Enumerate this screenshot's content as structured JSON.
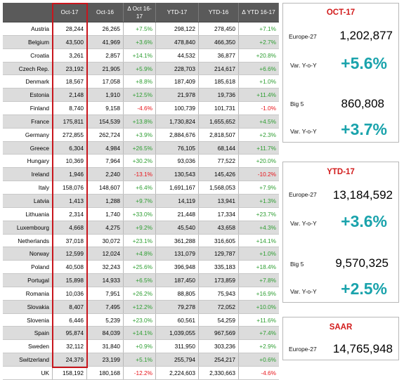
{
  "table": {
    "headers": [
      "",
      "Oct-17",
      "Oct-16",
      "Δ Oct 16-17",
      "YTD-17",
      "YTD-16",
      "Δ YTD 16-17"
    ],
    "rows": [
      [
        "Austria",
        "28,244",
        "26,265",
        "+7.5%",
        "298,122",
        "278,450",
        "+7.1%"
      ],
      [
        "Belgium",
        "43,500",
        "41,969",
        "+3.6%",
        "478,840",
        "466,350",
        "+2.7%"
      ],
      [
        "Croatia",
        "3,261",
        "2,857",
        "+14.1%",
        "44,532",
        "36,877",
        "+20.8%"
      ],
      [
        "Czech Rep.",
        "23,192",
        "21,905",
        "+5.9%",
        "228,703",
        "214,617",
        "+6.6%"
      ],
      [
        "Denmark",
        "18,567",
        "17,058",
        "+8.8%",
        "187,409",
        "185,618",
        "+1.0%"
      ],
      [
        "Estonia",
        "2,148",
        "1,910",
        "+12.5%",
        "21,978",
        "19,736",
        "+11.4%"
      ],
      [
        "Finland",
        "8,740",
        "9,158",
        "-4.6%",
        "100,739",
        "101,731",
        "-1.0%"
      ],
      [
        "France",
        "175,811",
        "154,539",
        "+13.8%",
        "1,730,824",
        "1,655,652",
        "+4.5%"
      ],
      [
        "Germany",
        "272,855",
        "262,724",
        "+3.9%",
        "2,884,676",
        "2,818,507",
        "+2.3%"
      ],
      [
        "Greece",
        "6,304",
        "4,984",
        "+26.5%",
        "76,105",
        "68,144",
        "+11.7%"
      ],
      [
        "Hungary",
        "10,369",
        "7,964",
        "+30.2%",
        "93,036",
        "77,522",
        "+20.0%"
      ],
      [
        "Ireland",
        "1,946",
        "2,240",
        "-13.1%",
        "130,543",
        "145,426",
        "-10.2%"
      ],
      [
        "Italy",
        "158,076",
        "148,607",
        "+6.4%",
        "1,691,167",
        "1,568,053",
        "+7.9%"
      ],
      [
        "Latvia",
        "1,413",
        "1,288",
        "+9.7%",
        "14,119",
        "13,941",
        "+1.3%"
      ],
      [
        "Lithuania",
        "2,314",
        "1,740",
        "+33.0%",
        "21,448",
        "17,334",
        "+23.7%"
      ],
      [
        "Luxembourg",
        "4,668",
        "4,275",
        "+9.2%",
        "45,540",
        "43,658",
        "+4.3%"
      ],
      [
        "Netherlands",
        "37,018",
        "30,072",
        "+23.1%",
        "361,288",
        "316,605",
        "+14.1%"
      ],
      [
        "Norway",
        "12,599",
        "12,024",
        "+4.8%",
        "131,079",
        "129,787",
        "+1.0%"
      ],
      [
        "Poland",
        "40,508",
        "32,243",
        "+25.6%",
        "396,948",
        "335,183",
        "+18.4%"
      ],
      [
        "Portugal",
        "15,898",
        "14,933",
        "+6.5%",
        "187,450",
        "173,859",
        "+7.8%"
      ],
      [
        "Romania",
        "10,036",
        "7,951",
        "+26.2%",
        "88,805",
        "75,943",
        "+16.9%"
      ],
      [
        "Slovakia",
        "8,407",
        "7,495",
        "+12.2%",
        "79,278",
        "72,052",
        "+10.0%"
      ],
      [
        "Slovenia",
        "6,446",
        "5,239",
        "+23.0%",
        "60,561",
        "54,259",
        "+11.6%"
      ],
      [
        "Spain",
        "95,874",
        "84,039",
        "+14.1%",
        "1,039,055",
        "967,569",
        "+7.4%"
      ],
      [
        "Sweden",
        "32,112",
        "31,840",
        "+0.9%",
        "311,950",
        "303,236",
        "+2.9%"
      ],
      [
        "Switzerland",
        "24,379",
        "23,199",
        "+5.1%",
        "255,794",
        "254,217",
        "+0.6%"
      ],
      [
        "UK",
        "158,192",
        "180,168",
        "-12.2%",
        "2,224,603",
        "2,330,663",
        "-4.6%"
      ]
    ]
  },
  "panels": {
    "oct": {
      "title": "OCT-17",
      "europe_label": "Europe-27",
      "europe_value": "1,202,877",
      "var1_label": "Var. Y-o-Y",
      "var1_value": "+5.6%",
      "big5_label": "Big 5",
      "big5_value": "860,808",
      "var2_label": "Var. Y-o-Y",
      "var2_value": "+3.7%"
    },
    "ytd": {
      "title": "YTD-17",
      "europe_label": "Europe-27",
      "europe_value": "13,184,592",
      "var1_label": "Var. Y-o-Y",
      "var1_value": "+3.6%",
      "big5_label": "Big 5",
      "big5_value": "9,570,325",
      "var2_label": "Var. Y-o-Y",
      "var2_value": "+2.5%"
    },
    "saar": {
      "title": "SAAR",
      "europe_label": "Europe-27",
      "europe_value": "14,765,948"
    }
  },
  "colors": {
    "header_bg": "#5a5a5a",
    "positive": "#2e9e32",
    "negative": "#e8141a",
    "highlight_border": "#c8161d",
    "panel_title": "#d21b1b",
    "panel_var": "#1aa3ac"
  }
}
